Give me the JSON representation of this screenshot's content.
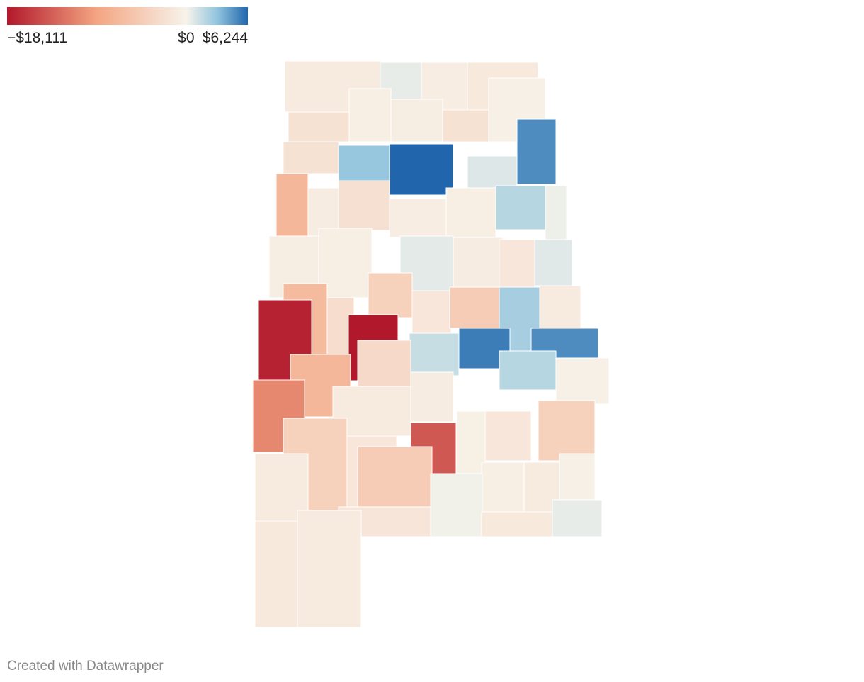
{
  "chart_data": {
    "type": "choropleth",
    "colors": [
      "#b2182b",
      "#f4a582",
      "#f7f3ea",
      "#92c5de",
      "#2166ac"
    ],
    "scale_ticks": [
      {
        "value": -18111,
        "label": "−$18,111"
      },
      {
        "value": 0,
        "label": "$0"
      },
      {
        "value": 6244,
        "label": "$6,244"
      }
    ],
    "values": [
      -1000,
      500,
      -700,
      -1200,
      -2000,
      -500,
      -600,
      -2000,
      -300,
      -2000,
      3000,
      6244,
      800,
      5000,
      -7000,
      -800,
      -2200,
      -700,
      -500,
      2000,
      300,
      -600,
      -500,
      600,
      -800,
      -1500,
      700,
      -6500,
      -2500,
      -4000,
      -1500,
      -4500,
      2500,
      -1000,
      -17500,
      -18111,
      1500,
      5500,
      5000,
      -7000,
      -3000,
      -800,
      2000,
      -300,
      -11000,
      -1000,
      -500,
      -4000,
      -4000,
      -1500,
      -14000,
      -400,
      -1500,
      -300,
      -1000,
      -4500,
      -500,
      -1000,
      -1600,
      200,
      -1200,
      500,
      -1200,
      -1000
    ],
    "footer": "Created with Datawrapper"
  }
}
